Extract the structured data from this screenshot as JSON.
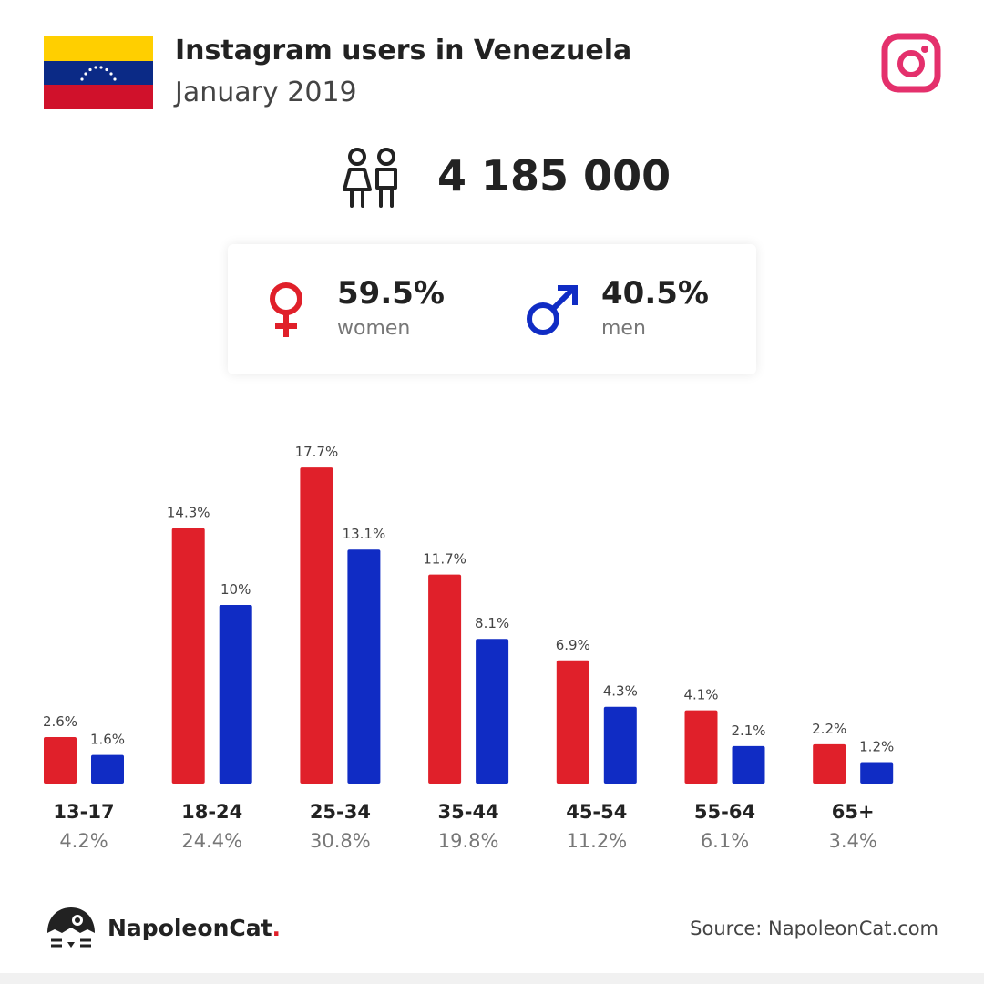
{
  "header": {
    "title": "Instagram users in Venezuela",
    "subtitle": "January 2019",
    "flag_icon": "venezuela-flag-icon",
    "platform_icon": "instagram-icon"
  },
  "summary": {
    "total_users": "4 185 000",
    "people_icon": "users-icon"
  },
  "gender": {
    "women": {
      "percent": "59.5%",
      "label": "women",
      "icon": "female-symbol-icon",
      "color": "#e0202a"
    },
    "men": {
      "percent": "40.5%",
      "label": "men",
      "icon": "male-symbol-icon",
      "color": "#102cc4"
    }
  },
  "chart_data": {
    "type": "bar",
    "categories": [
      "13-17",
      "18-24",
      "25-34",
      "35-44",
      "45-54",
      "55-64",
      "65+"
    ],
    "category_totals": [
      "4.2%",
      "24.4%",
      "30.8%",
      "19.8%",
      "11.2%",
      "6.1%",
      "3.4%"
    ],
    "series": [
      {
        "name": "women",
        "color": "#e0202a",
        "values": [
          2.6,
          14.3,
          17.7,
          11.7,
          6.9,
          4.1,
          2.2
        ],
        "labels": [
          "2.6%",
          "14.3%",
          "17.7%",
          "11.7%",
          "6.9%",
          "4.1%",
          "2.2%"
        ]
      },
      {
        "name": "men",
        "color": "#102cc4",
        "values": [
          1.6,
          10,
          13.1,
          8.1,
          4.3,
          2.1,
          1.2
        ],
        "labels": [
          "1.6%",
          "10%",
          "13.1%",
          "8.1%",
          "4.3%",
          "2.1%",
          "1.2%"
        ]
      }
    ]
  },
  "footer": {
    "brand_name": "NapoleonCat",
    "brand_dot": ".",
    "logo_icon": "napoleoncat-logo-icon",
    "source": "Source: NapoleonCat.com"
  }
}
